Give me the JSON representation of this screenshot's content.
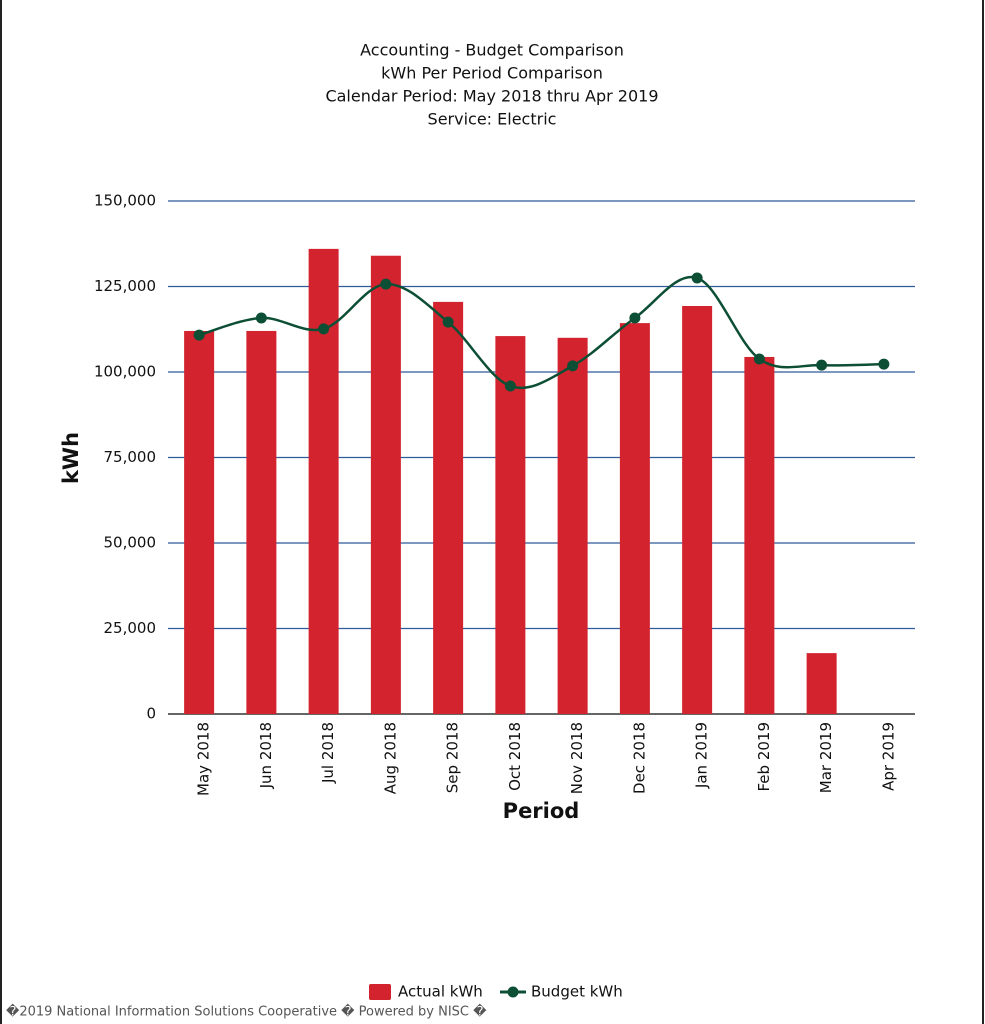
{
  "chart_data": {
    "type": "bar",
    "title": [
      "Accounting - Budget Comparison",
      "kWh Per Period Comparison",
      "Calendar Period: May 2018 thru Apr 2019",
      "Service: Electric"
    ],
    "x_label": "Period",
    "y_label": "kWh",
    "categories": [
      "May 2018",
      "Jun 2018",
      "Jul 2018",
      "Aug 2018",
      "Sep 2018",
      "Oct 2018",
      "Nov 2018",
      "Dec 2018",
      "Jan 2019",
      "Feb 2019",
      "Mar 2019",
      "Apr 2019"
    ],
    "series": [
      {
        "name": "Actual kWh",
        "type": "bar",
        "color": "#d2232f",
        "values": [
          112000,
          112000,
          136000,
          134000,
          120500,
          110500,
          110000,
          114300,
          119300,
          104400,
          17800,
          0
        ]
      },
      {
        "name": "Budget kWh",
        "type": "spline",
        "color": "#0d4f35",
        "values": [
          110800,
          115800,
          112600,
          125700,
          114600,
          95900,
          101800,
          115800,
          127500,
          103800,
          102000,
          102300
        ]
      }
    ],
    "ylim": [
      0,
      150000
    ],
    "yticks": [
      {
        "value": 0,
        "label": "0"
      },
      {
        "value": 25000,
        "label": "25,000"
      },
      {
        "value": 50000,
        "label": "50,000"
      },
      {
        "value": 75000,
        "label": "75,000"
      },
      {
        "value": 100000,
        "label": "100,000"
      },
      {
        "value": 125000,
        "label": "125,000"
      },
      {
        "value": 150000,
        "label": "150,000"
      }
    ],
    "grid": true,
    "grid_color": "#2f5b9a",
    "legend": "bottom",
    "footer": "�2019 National Information Solutions Cooperative � Powered by NISC �"
  }
}
